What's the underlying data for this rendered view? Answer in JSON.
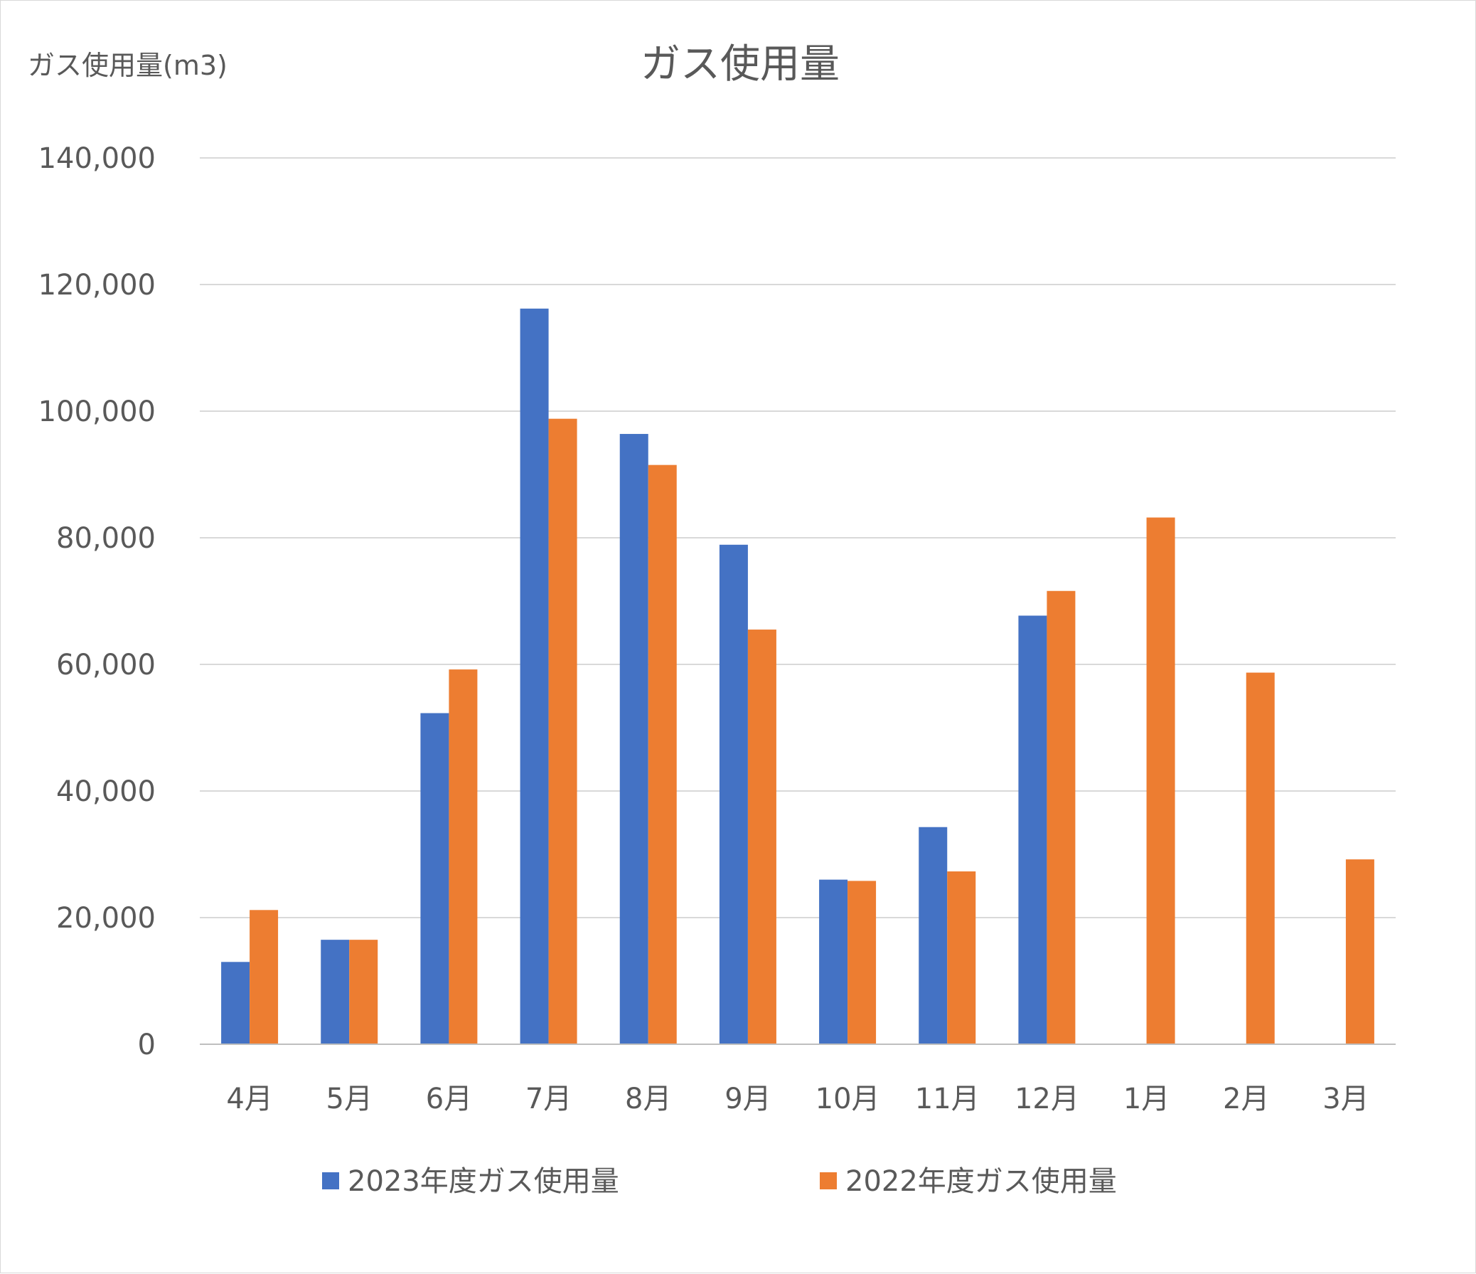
{
  "chart_data": {
    "type": "bar",
    "title": "ガス使用量",
    "ylabel": "ガス使用量(m3)",
    "xlabel": "",
    "categories": [
      "4月",
      "5月",
      "6月",
      "7月",
      "8月",
      "9月",
      "10月",
      "11月",
      "12月",
      "1月",
      "2月",
      "3月"
    ],
    "series": [
      {
        "name": "2023年度ガス使用量",
        "color": "#4472c4",
        "values": [
          13000,
          16500,
          52300,
          116200,
          96400,
          78900,
          26000,
          34300,
          67700,
          null,
          null,
          null
        ]
      },
      {
        "name": "2022年度ガス使用量",
        "color": "#ed7d31",
        "values": [
          21200,
          16500,
          59200,
          98800,
          91500,
          65500,
          25800,
          27300,
          71600,
          83200,
          58700,
          29200
        ]
      }
    ],
    "ylim": [
      0,
      140000
    ],
    "yticks": [
      0,
      20000,
      40000,
      60000,
      80000,
      100000,
      120000,
      140000
    ],
    "ytick_labels": [
      "0",
      "20,000",
      "40,000",
      "60,000",
      "80,000",
      "100,000",
      "120,000",
      "140,000"
    ],
    "grid": true,
    "legend_position": "bottom"
  }
}
